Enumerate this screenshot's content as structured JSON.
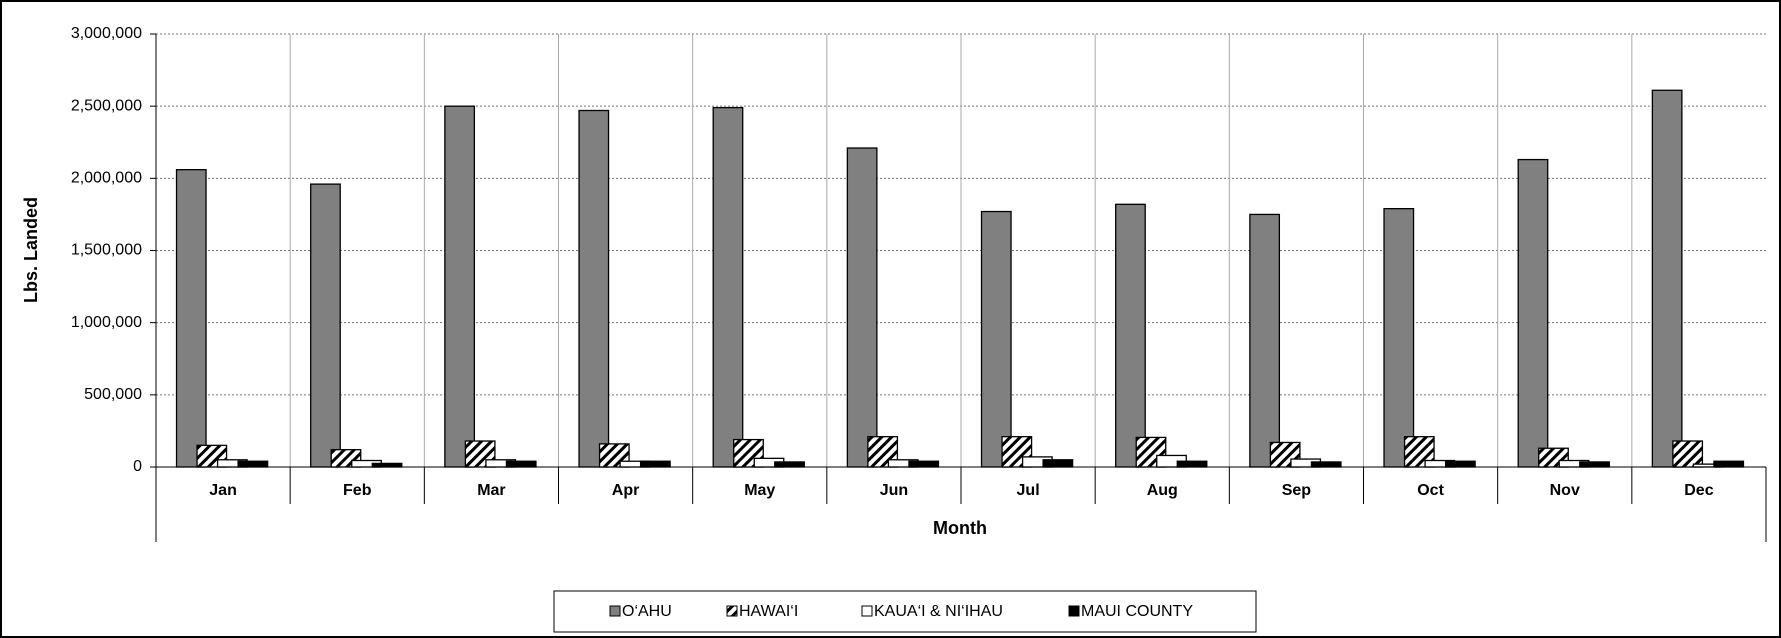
{
  "chart_data": {
    "type": "bar",
    "x_label": "Month",
    "y_label": "Lbs. Landed",
    "categories": [
      "Jan",
      "Feb",
      "Mar",
      "Apr",
      "May",
      "Jun",
      "Jul",
      "Aug",
      "Sep",
      "Oct",
      "Nov",
      "Dec"
    ],
    "series": [
      {
        "name": "O‘AHU",
        "color": "#808080",
        "values": [
          2060000,
          1960000,
          2500000,
          2470000,
          2490000,
          2210000,
          1770000,
          1820000,
          1750000,
          1790000,
          2130000,
          2610000
        ]
      },
      {
        "name": "HAWAI‘I",
        "color": "#ffffff",
        "pattern": "diagonal",
        "values": [
          150000,
          120000,
          180000,
          160000,
          190000,
          210000,
          210000,
          205000,
          170000,
          210000,
          130000,
          180000
        ]
      },
      {
        "name": "KAUA‘I & NI‘IHAU",
        "color": "#ffffff",
        "values": [
          50000,
          45000,
          50000,
          40000,
          60000,
          50000,
          70000,
          80000,
          55000,
          45000,
          45000,
          20000
        ]
      },
      {
        "name": "MAUI COUNTY",
        "color": "#000000",
        "values": [
          40000,
          25000,
          40000,
          40000,
          35000,
          40000,
          50000,
          40000,
          35000,
          40000,
          35000,
          40000
        ]
      }
    ],
    "ylim": [
      0,
      3000000
    ],
    "yticks": [
      0,
      {
        "value": 500000,
        "label": "500,000"
      },
      {
        "value": 1000000,
        "label": "1,000,000"
      },
      {
        "value": 1500000,
        "label": "1,500,000"
      },
      {
        "value": 2000000,
        "label": "2,000,000"
      },
      {
        "value": 2500000,
        "label": "2,500,000"
      },
      {
        "value": 3000000,
        "label": "3,000,000"
      }
    ],
    "grid": true,
    "legend": "bottom"
  }
}
